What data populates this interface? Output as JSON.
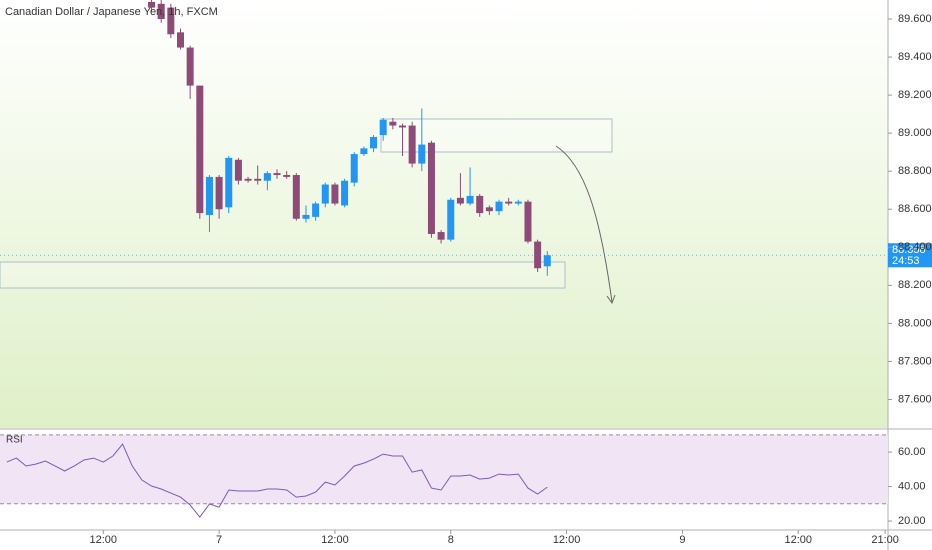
{
  "chart_data": [
    {
      "type": "candlestick",
      "title": "Canadian Dollar / Japanese Yen, 1h, FXCM",
      "x": [
        -7,
        -6,
        -5,
        -4,
        -3,
        -2,
        -1,
        0,
        1,
        2,
        3,
        4,
        5,
        6,
        7,
        8,
        9,
        10,
        11,
        12,
        13,
        14,
        15,
        16,
        17,
        18,
        19,
        20,
        21,
        22,
        23,
        24,
        25,
        26,
        27,
        28,
        29,
        30,
        31,
        32,
        33,
        34
      ],
      "open": [
        89.69,
        89.68,
        89.66,
        89.53,
        89.45,
        89.25,
        88.57,
        88.77,
        88.61,
        88.86,
        88.76,
        88.76,
        88.75,
        88.79,
        88.78,
        88.78,
        88.55,
        88.56,
        88.63,
        88.73,
        88.62,
        88.74,
        88.89,
        88.92,
        88.99,
        89.06,
        89.04,
        89.04,
        88.84,
        88.95,
        88.48,
        88.44,
        88.66,
        88.63,
        88.67,
        88.61,
        88.59,
        88.64,
        88.63,
        88.64,
        88.43,
        88.3
      ],
      "high": [
        89.7,
        89.7,
        89.68,
        89.55,
        89.46,
        89.25,
        88.78,
        88.78,
        88.88,
        88.87,
        88.77,
        88.83,
        88.8,
        88.81,
        88.8,
        88.79,
        88.62,
        88.64,
        88.74,
        88.74,
        88.76,
        88.9,
        88.93,
        88.99,
        89.08,
        89.08,
        89.05,
        89.06,
        89.13,
        88.96,
        88.49,
        88.66,
        88.79,
        88.82,
        88.68,
        88.62,
        88.65,
        88.66,
        88.65,
        88.65,
        88.44,
        88.38
      ],
      "low": [
        89.64,
        89.58,
        89.5,
        89.44,
        89.18,
        88.55,
        88.48,
        88.55,
        88.58,
        88.73,
        88.74,
        88.73,
        88.7,
        88.76,
        88.76,
        88.54,
        88.53,
        88.54,
        88.61,
        88.62,
        88.61,
        88.72,
        88.88,
        88.9,
        88.96,
        89.02,
        88.88,
        88.82,
        88.8,
        88.45,
        88.42,
        88.43,
        88.62,
        88.62,
        88.56,
        88.57,
        88.57,
        88.62,
        88.62,
        88.42,
        88.27,
        88.25
      ],
      "close": [
        89.66,
        89.6,
        89.52,
        89.45,
        89.25,
        88.58,
        88.77,
        88.6,
        88.87,
        88.75,
        88.75,
        88.75,
        88.79,
        88.78,
        88.77,
        88.55,
        88.57,
        88.63,
        88.73,
        88.63,
        88.75,
        88.89,
        88.92,
        88.98,
        89.07,
        89.04,
        89.03,
        88.84,
        88.94,
        88.47,
        88.44,
        88.65,
        88.63,
        88.67,
        88.58,
        88.59,
        88.64,
        88.63,
        88.64,
        88.43,
        88.29,
        88.358
      ],
      "up_color": "#2196f3",
      "down_color": "#8e4b78",
      "last_price_label": "88.358",
      "countdown": "24:53",
      "xlim": [
        -22.7,
        69.3
      ],
      "ylim": [
        87.45,
        89.7
      ],
      "yticks": [
        {
          "value": 87.6,
          "label": "87.600"
        },
        {
          "value": 87.8,
          "label": "87.800"
        },
        {
          "value": 88.0,
          "label": "88.000"
        },
        {
          "value": 88.2,
          "label": "88.200"
        },
        {
          "value": 88.4,
          "label": "88.400"
        },
        {
          "value": 88.6,
          "label": "88.600"
        },
        {
          "value": 88.8,
          "label": "88.800"
        },
        {
          "value": 89.0,
          "label": "89.000"
        },
        {
          "value": 89.2,
          "label": "89.200"
        },
        {
          "value": 89.4,
          "label": "89.400"
        },
        {
          "value": 89.6,
          "label": "89.600"
        }
      ]
    },
    {
      "type": "line",
      "title": "RSI",
      "x": [
        -22,
        -21,
        -20,
        -19,
        -18,
        -17,
        -16,
        -15,
        -14,
        -13,
        -12,
        -11,
        -10,
        -9,
        -8,
        -7,
        -6,
        -5,
        -4,
        -3,
        -2,
        -1,
        0,
        1,
        2,
        3,
        4,
        5,
        6,
        7,
        8,
        9,
        10,
        11,
        12,
        13,
        14,
        15,
        16,
        17,
        18,
        19,
        20,
        21,
        22,
        23,
        24,
        25,
        26,
        27,
        28,
        29,
        30,
        31,
        32,
        33,
        34
      ],
      "values": [
        54.2,
        56.5,
        51.9,
        53,
        54.8,
        52,
        49,
        52,
        55.4,
        56.5,
        54.2,
        57.7,
        64.6,
        52,
        43.8,
        40.3,
        38.6,
        36.2,
        33.9,
        29.3,
        22.3,
        29.9,
        28.1,
        38,
        37.4,
        37.4,
        37.4,
        38.6,
        38.6,
        38,
        33.9,
        34.5,
        36.8,
        42.6,
        40.9,
        46.1,
        51.9,
        53.6,
        55.9,
        58.8,
        57.7,
        57.7,
        48.4,
        49.6,
        39.1,
        38,
        46.1,
        46.1,
        46.7,
        44.3,
        44.9,
        47.2,
        46.7,
        47.2,
        39.1,
        35.7,
        39.7
      ],
      "color": "#7e57c2",
      "band": [
        30,
        70
      ],
      "band_color": "#f0e4f5",
      "xlim": [
        -22.7,
        69.3
      ],
      "ylim": [
        14.8,
        72.8
      ],
      "yticks": [
        {
          "value": 20,
          "label": "20.00"
        },
        {
          "value": 40,
          "label": "40.00"
        },
        {
          "value": 60,
          "label": "60.00"
        }
      ],
      "xticks": [
        {
          "value": -12,
          "label": "12:00"
        },
        {
          "value": 0,
          "label": "7"
        },
        {
          "value": 12,
          "label": "12:00"
        },
        {
          "value": 24,
          "label": "8"
        },
        {
          "value": 36,
          "label": "12:00"
        },
        {
          "value": 48,
          "label": "9"
        },
        {
          "value": 60,
          "label": "12:00"
        },
        {
          "value": 69,
          "label": "21:00"
        }
      ]
    }
  ]
}
